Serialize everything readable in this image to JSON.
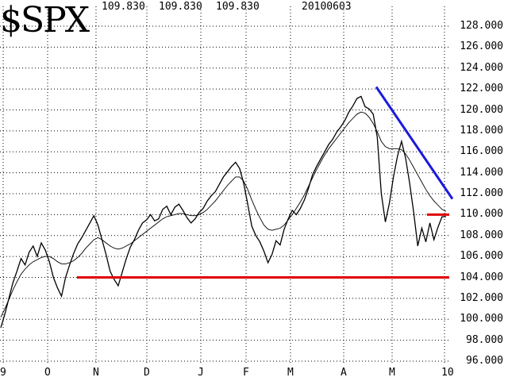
{
  "header": {
    "symbol": "$SPX",
    "value1": "109.830",
    "value2": "109.830",
    "value3": "109.830",
    "date": "20100603"
  },
  "chart_data": {
    "type": "line",
    "title": "$SPX",
    "ylim": [
      95,
      129
    ],
    "y_ticks": [
      "128.000",
      "126.000",
      "124.000",
      "122.000",
      "120.000",
      "118.000",
      "116.000",
      "114.000",
      "112.000",
      "110.000",
      "108.000",
      "106.000",
      "104.000",
      "102.000",
      "100.000",
      "98.000",
      "96.000"
    ],
    "x_ticks": [
      "9",
      "O",
      "N",
      "D",
      "J",
      "F",
      "M",
      "A",
      "M",
      "10"
    ],
    "grid": true,
    "series": [
      {
        "values": [
          99.2,
          100.5,
          102.0,
          103.5,
          104.6,
          105.8,
          105.2,
          106.4,
          107.0,
          106.0,
          107.3,
          106.6,
          105.5,
          104.0,
          103.0,
          102.2,
          104.0,
          105.2,
          106.3,
          107.2,
          107.8,
          108.5,
          109.2,
          109.9,
          109.0,
          107.6,
          106.2,
          104.6,
          103.8,
          103.2,
          104.5,
          105.8,
          106.9,
          107.6,
          108.5,
          109.2,
          109.5,
          110.0,
          109.4,
          109.6,
          110.5,
          110.8,
          110.0,
          110.7,
          111.0,
          110.4,
          109.7,
          109.2,
          109.6,
          110.2,
          110.6,
          111.3,
          111.8,
          112.2,
          112.9,
          113.6,
          114.1,
          114.6,
          115.0,
          114.4,
          113.0,
          111.0,
          108.9,
          108.0,
          107.4,
          106.5,
          105.4,
          106.2,
          107.5,
          107.1,
          108.6,
          109.6,
          110.4,
          110.0,
          110.6,
          111.4,
          112.5,
          113.8,
          114.6,
          115.3,
          116.0,
          116.7,
          117.2,
          117.9,
          118.4,
          119.0,
          119.8,
          120.4,
          121.1,
          121.3,
          120.3,
          120.1,
          119.6,
          117.4,
          112.0,
          109.3,
          111.1,
          113.6,
          115.6,
          117.0,
          115.4,
          113.0,
          110.2,
          107.0,
          108.7,
          107.4,
          109.2,
          107.6,
          108.8,
          109.8,
          109.8
        ]
      },
      {
        "values": [
          100.2,
          101.0,
          101.9,
          102.8,
          103.6,
          104.3,
          104.8,
          105.2,
          105.5,
          105.7,
          105.9,
          106.0,
          106.0,
          105.8,
          105.5,
          105.3,
          105.3,
          105.4,
          105.6,
          105.9,
          106.3,
          106.8,
          107.2,
          107.6,
          107.8,
          107.6,
          107.3,
          107.0,
          106.8,
          106.7,
          106.8,
          107.0,
          107.2,
          107.5,
          107.8,
          108.1,
          108.4,
          108.7,
          109.0,
          109.3,
          109.6,
          109.8,
          109.9,
          110.0,
          110.1,
          110.1,
          110.0,
          109.9,
          109.9,
          110.0,
          110.2,
          110.5,
          110.9,
          111.3,
          111.8,
          112.3,
          112.8,
          113.2,
          113.6,
          113.6,
          113.2,
          112.4,
          111.4,
          110.5,
          109.7,
          109.0,
          108.6,
          108.5,
          108.6,
          108.7,
          109.0,
          109.5,
          110.0,
          110.6,
          111.2,
          111.9,
          112.7,
          113.5,
          114.3,
          115.0,
          115.7,
          116.3,
          116.8,
          117.3,
          117.8,
          118.3,
          118.8,
          119.2,
          119.6,
          119.8,
          119.7,
          119.3,
          118.7,
          117.9,
          117.0,
          116.5,
          116.3,
          116.3,
          116.3,
          116.2,
          115.8,
          115.2,
          114.5,
          113.8,
          113.1,
          112.4,
          111.8,
          111.3,
          110.9,
          110.5,
          110.3
        ]
      }
    ],
    "annotations": {
      "support_line": {
        "y": 104.0,
        "color": "#e00000"
      },
      "resistance_segment": {
        "y": 110.0,
        "color": "#e00000"
      },
      "downtrend_line": {
        "from": 122.2,
        "to": 111.5,
        "color": "#1a1adc"
      }
    }
  }
}
